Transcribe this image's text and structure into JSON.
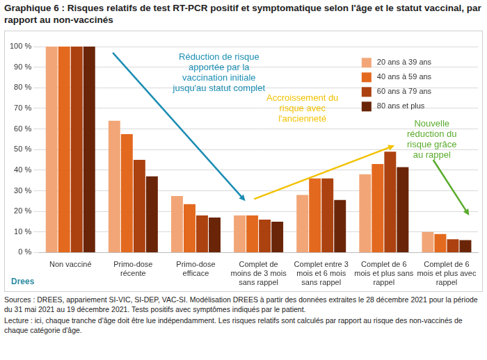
{
  "chart_data": {
    "type": "bar",
    "title": "Graphique 6 : Risques relatifs de test RT-PCR positif et symptomatique selon l'âge et le statut vaccinal, par rapport au non-vaccinés",
    "categories": [
      "Non vacciné",
      "Primo-dose récente",
      "Primo-dose efficace",
      "Complet de moins de 3 mois sans rappel",
      "Complet entre 3 mois et 6 mois sans rappel",
      "Complet de 6 mois et plus sans rappel",
      "Complet de 6 mois et plus avec rappel"
    ],
    "series": [
      {
        "name": "20 ans à 39 ans",
        "color": "#f2a677",
        "values": [
          100,
          64,
          27.5,
          18,
          28,
          38,
          10
        ]
      },
      {
        "name": "40 ans à 59 ans",
        "color": "#e3691f",
        "values": [
          100,
          57.5,
          23.5,
          18,
          36,
          43,
          9
        ]
      },
      {
        "name": "60 ans à 79 ans",
        "color": "#ac4210",
        "values": [
          100,
          45,
          18,
          16,
          36,
          49,
          6.5
        ]
      },
      {
        "name": "80 ans et plus",
        "color": "#6a2508",
        "values": [
          100,
          37,
          17,
          15,
          25.5,
          41.5,
          6
        ]
      }
    ],
    "ylim": [
      0,
      100
    ],
    "yticks": [
      {
        "value": 0,
        "label": "0 %"
      },
      {
        "value": 10,
        "label": "10 %"
      },
      {
        "value": 20,
        "label": "20 %"
      },
      {
        "value": 30,
        "label": "30 %"
      },
      {
        "value": 40,
        "label": "40 %"
      },
      {
        "value": 50,
        "label": "50 %"
      },
      {
        "value": 60,
        "label": "60 %"
      },
      {
        "value": 70,
        "label": "70 %"
      },
      {
        "value": 80,
        "label": "80 %"
      },
      {
        "value": 90,
        "label": "90 %"
      },
      {
        "value": 100,
        "label": "100 %"
      }
    ],
    "grid": true,
    "legend": "upper right",
    "annotations": [
      {
        "text": "Réduction de risque apportée par la vaccination initiale jusqu'au statut complet",
        "color": "#1b8db3"
      },
      {
        "text": "Accroissement du risque avec l'ancienneté",
        "color": "#f2c200"
      },
      {
        "text": "Nouvelle réduction du risque grâce au rappel",
        "color": "#5aab2c"
      }
    ],
    "logo": "Drees",
    "notes": [
      "Sources : DREES, appariement SI-VIC, SI-DEP, VAC-SI. Modélisation DREES à partir des données extraites le 28 décembre 2021 pour la période du 31 mai 2021 au 19 décembre 2021. Tests positifs avec symptômes indiqués par le patient.",
      "Lecture : ici, chaque tranche d'âge doit être lue indépendamment. Les risques relatifs sont calculés par rapport au risque des non-vaccinés de chaque catégorie d'âge."
    ]
  }
}
